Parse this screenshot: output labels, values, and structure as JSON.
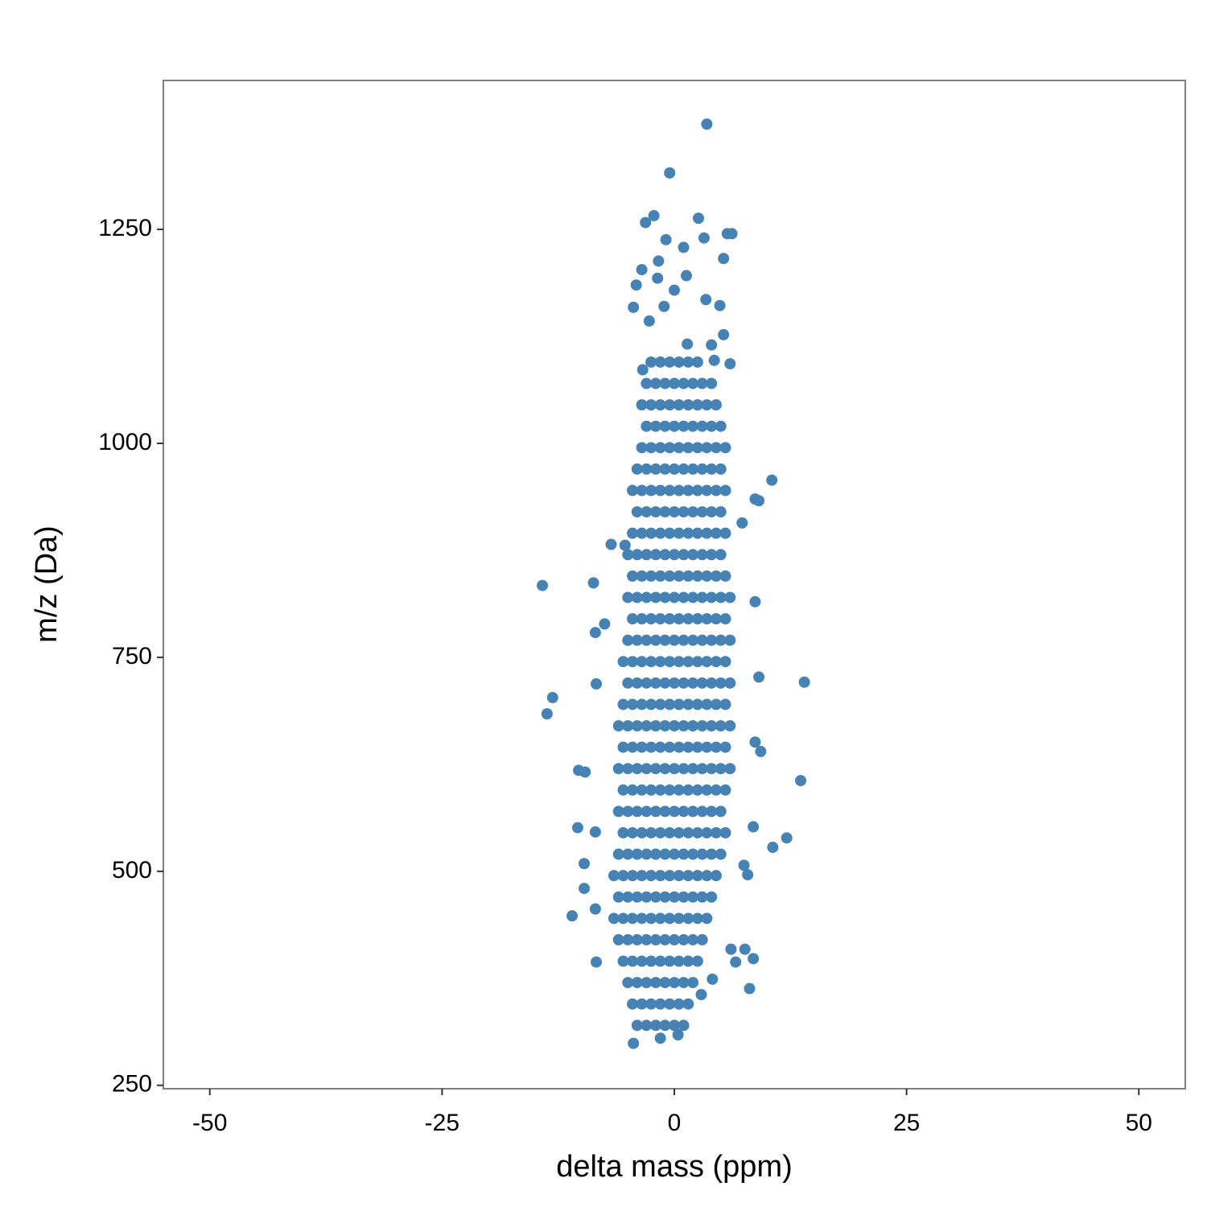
{
  "chart_data": {
    "type": "scatter",
    "x_label": "delta mass (ppm)",
    "y_label": "m/z (Da)",
    "color": "#4682b4",
    "grid": false,
    "xlim": [
      -55,
      55
    ],
    "xticks": [
      -50,
      -25,
      0,
      25,
      50
    ],
    "ylim": [
      246,
      1424
    ],
    "yticks": [
      250,
      500,
      750,
      1000,
      1250
    ],
    "x": [
      -4,
      -3,
      -2,
      -1,
      0,
      1,
      -4.5,
      -3.5,
      -2.5,
      -1.5,
      -0.5,
      0.5,
      1.5,
      -5,
      -4,
      -3,
      -2,
      -1,
      0,
      1,
      2,
      -5.5,
      -4.5,
      -3.5,
      -2.5,
      -1.5,
      -0.5,
      0.5,
      1.5,
      2.5,
      -6,
      -5,
      -4,
      -3,
      -2,
      -1,
      0,
      1,
      2,
      3,
      -6.5,
      -5.5,
      -4.5,
      -3.5,
      -2.5,
      -1.5,
      -0.5,
      0.5,
      1.5,
      2.5,
      3.5,
      -6,
      -5,
      -4,
      -3,
      -2,
      -1,
      0,
      1,
      2,
      3,
      4,
      -6.5,
      -5.5,
      -4.5,
      -3.5,
      -2.5,
      -1.5,
      -0.5,
      0.5,
      1.5,
      2.5,
      3.5,
      4.5,
      -6,
      -5,
      -4,
      -3,
      -2,
      -1,
      0,
      1,
      2,
      3,
      4,
      5,
      -5.5,
      -4.5,
      -3.5,
      -2.5,
      -1.5,
      -0.5,
      0.5,
      1.5,
      2.5,
      3.5,
      4.5,
      5.5,
      -6,
      -5,
      -4,
      -3,
      -2,
      -1,
      0,
      1,
      2,
      3,
      4,
      5,
      -5.5,
      -4.5,
      -3.5,
      -2.5,
      -1.5,
      -0.5,
      0.5,
      1.5,
      2.5,
      3.5,
      4.5,
      5.5,
      -6,
      -5,
      -4,
      -3,
      -2,
      -1,
      0,
      1,
      2,
      3,
      4,
      5,
      6,
      -5.5,
      -4.5,
      -3.5,
      -2.5,
      -1.5,
      -0.5,
      0.5,
      1.5,
      2.5,
      3.5,
      4.5,
      5.5,
      -6,
      -5,
      -4,
      -3,
      -2,
      -1,
      0,
      1,
      2,
      3,
      4,
      5,
      6,
      -5.5,
      -4.5,
      -3.5,
      -2.5,
      -1.5,
      -0.5,
      0.5,
      1.5,
      2.5,
      3.5,
      4.5,
      5.5,
      -5,
      -4,
      -3,
      -2,
      -1,
      0,
      1,
      2,
      3,
      4,
      5,
      6,
      -5.5,
      -4.5,
      -3.5,
      -2.5,
      -1.5,
      -0.5,
      0.5,
      1.5,
      2.5,
      3.5,
      4.5,
      5.5,
      -5,
      -4,
      -3,
      -2,
      -1,
      0,
      1,
      2,
      3,
      4,
      5,
      6,
      -4.5,
      -3.5,
      -2.5,
      -1.5,
      -0.5,
      0.5,
      1.5,
      2.5,
      3.5,
      4.5,
      5.5,
      -5,
      -4,
      -3,
      -2,
      -1,
      0,
      1,
      2,
      3,
      4,
      5,
      6,
      -4.5,
      -3.5,
      -2.5,
      -1.5,
      -0.5,
      0.5,
      1.5,
      2.5,
      3.5,
      4.5,
      5.5,
      -5,
      -4,
      -3,
      -2,
      -1,
      0,
      1,
      2,
      3,
      4,
      5,
      -4.5,
      -3.5,
      -2.5,
      -1.5,
      -0.5,
      0.5,
      1.5,
      2.5,
      3.5,
      4.5,
      5.5,
      -4,
      -3,
      -2,
      -1,
      0,
      1,
      2,
      3,
      4,
      5,
      -4.5,
      -3.5,
      -2.5,
      -1.5,
      -0.5,
      0.5,
      1.5,
      2.5,
      3.5,
      4.5,
      5.5,
      -4,
      -3,
      -2,
      -1,
      0,
      1,
      2,
      3,
      4,
      5,
      -3.5,
      -2.5,
      -1.5,
      -0.5,
      0.5,
      1.5,
      2.5,
      3.5,
      4.5,
      5.5,
      -3,
      -2,
      -1,
      0,
      1,
      2,
      3,
      4,
      5,
      -3.5,
      -2.5,
      -1.5,
      -0.5,
      0.5,
      1.5,
      2.5,
      3.5,
      4.5,
      -3,
      -2,
      -1,
      0,
      1,
      2,
      3,
      4,
      -2.5,
      -1.5,
      -0.5,
      0.5,
      1.5,
      2.5,
      3.5,
      -0.5,
      2.6,
      -2.2,
      -3.1,
      5.7,
      6.2,
      3.2,
      -0.9,
      1.0,
      5.3,
      -1.7,
      -3.5,
      -1.8,
      1.3,
      -4.1,
      0,
      3.4,
      -4.4,
      4.9,
      -1.1,
      -2.7,
      5.3,
      1.4,
      4.0,
      6.0,
      4.3,
      -3.4,
      -6.8,
      -14.2,
      -8.7,
      -5.3,
      10.5,
      8.7,
      9.1,
      7.3,
      8.7,
      -8.5,
      -7.5,
      9.1,
      14.0,
      -13.1,
      -13.7,
      -8.4,
      8.7,
      9.3,
      13.6,
      -10.3,
      -9.6,
      -10.4,
      -8.5,
      8.5,
      12.1,
      10.6,
      -9.7,
      -9.7,
      -11.0,
      -8.5,
      8.5,
      8.1,
      4.1,
      2.9,
      6.6,
      7.6,
      -4.4,
      -1.5,
      0.4,
      -8.4,
      6.1,
      7.9,
      7.5
    ],
    "values": [
      320,
      320,
      320,
      320,
      320,
      320,
      345,
      345,
      345,
      345,
      345,
      345,
      345,
      370,
      370,
      370,
      370,
      370,
      370,
      370,
      370,
      395,
      395,
      395,
      395,
      395,
      395,
      395,
      395,
      395,
      420,
      420,
      420,
      420,
      420,
      420,
      420,
      420,
      420,
      420,
      445,
      445,
      445,
      445,
      445,
      445,
      445,
      445,
      445,
      445,
      445,
      470,
      470,
      470,
      470,
      470,
      470,
      470,
      470,
      470,
      470,
      470,
      495,
      495,
      495,
      495,
      495,
      495,
      495,
      495,
      495,
      495,
      495,
      495,
      520,
      520,
      520,
      520,
      520,
      520,
      520,
      520,
      520,
      520,
      520,
      520,
      545,
      545,
      545,
      545,
      545,
      545,
      545,
      545,
      545,
      545,
      545,
      545,
      570,
      570,
      570,
      570,
      570,
      570,
      570,
      570,
      570,
      570,
      570,
      570,
      595,
      595,
      595,
      595,
      595,
      595,
      595,
      595,
      595,
      595,
      595,
      595,
      620,
      620,
      620,
      620,
      620,
      620,
      620,
      620,
      620,
      620,
      620,
      620,
      620,
      645,
      645,
      645,
      645,
      645,
      645,
      645,
      645,
      645,
      645,
      645,
      645,
      670,
      670,
      670,
      670,
      670,
      670,
      670,
      670,
      670,
      670,
      670,
      670,
      670,
      695,
      695,
      695,
      695,
      695,
      695,
      695,
      695,
      695,
      695,
      695,
      695,
      720,
      720,
      720,
      720,
      720,
      720,
      720,
      720,
      720,
      720,
      720,
      720,
      745,
      745,
      745,
      745,
      745,
      745,
      745,
      745,
      745,
      745,
      745,
      745,
      770,
      770,
      770,
      770,
      770,
      770,
      770,
      770,
      770,
      770,
      770,
      770,
      795,
      795,
      795,
      795,
      795,
      795,
      795,
      795,
      795,
      795,
      795,
      820,
      820,
      820,
      820,
      820,
      820,
      820,
      820,
      820,
      820,
      820,
      820,
      845,
      845,
      845,
      845,
      845,
      845,
      845,
      845,
      845,
      845,
      845,
      870,
      870,
      870,
      870,
      870,
      870,
      870,
      870,
      870,
      870,
      870,
      895,
      895,
      895,
      895,
      895,
      895,
      895,
      895,
      895,
      895,
      895,
      920,
      920,
      920,
      920,
      920,
      920,
      920,
      920,
      920,
      920,
      945,
      945,
      945,
      945,
      945,
      945,
      945,
      945,
      945,
      945,
      945,
      970,
      970,
      970,
      970,
      970,
      970,
      970,
      970,
      970,
      970,
      995,
      995,
      995,
      995,
      995,
      995,
      995,
      995,
      995,
      995,
      1020,
      1020,
      1020,
      1020,
      1020,
      1020,
      1020,
      1020,
      1020,
      1045,
      1045,
      1045,
      1045,
      1045,
      1045,
      1045,
      1045,
      1045,
      1070,
      1070,
      1070,
      1070,
      1070,
      1070,
      1070,
      1070,
      1095,
      1095,
      1095,
      1095,
      1095,
      1095,
      1373,
      1316,
      1263,
      1266,
      1258,
      1245,
      1245,
      1240,
      1238,
      1229,
      1216,
      1213,
      1203,
      1193,
      1196,
      1185,
      1179,
      1168,
      1159,
      1161,
      1160,
      1143,
      1127,
      1116,
      1115,
      1093,
      1097,
      1086,
      882,
      834,
      837,
      881,
      957,
      935,
      933,
      907,
      815,
      779,
      789,
      727,
      721,
      703,
      684,
      719,
      651,
      640,
      606,
      618,
      616,
      551,
      546,
      552,
      539,
      528,
      509,
      480,
      448,
      456,
      398,
      363,
      374,
      356,
      394,
      409,
      299,
      305,
      309,
      394,
      409,
      496,
      507
    ]
  }
}
